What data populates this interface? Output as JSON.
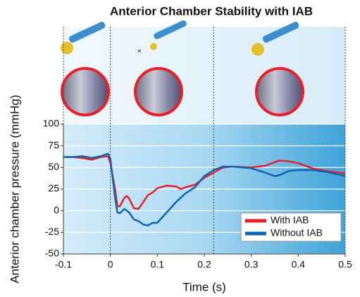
{
  "chart_data": {
    "type": "line",
    "title": "Anterior Chamber Stability with IAB",
    "x_label": "Time (s)",
    "y_label": "Anterior chamber pressure (mmHg)",
    "x": [
      -0.1,
      -0.08,
      -0.06,
      -0.04,
      -0.02,
      -0.005,
      0.0,
      0.01,
      0.015,
      0.02,
      0.03,
      0.035,
      0.04,
      0.05,
      0.06,
      0.07,
      0.08,
      0.09,
      0.1,
      0.12,
      0.14,
      0.15,
      0.16,
      0.18,
      0.2,
      0.22,
      0.24,
      0.26,
      0.3,
      0.33,
      0.35,
      0.36,
      0.38,
      0.4,
      0.43,
      0.46,
      0.5
    ],
    "series": [
      {
        "name": "With IAB",
        "color": "#e8202a",
        "values": [
          62,
          62,
          61,
          59,
          62,
          63,
          55,
          25,
          5,
          5,
          15,
          17,
          14,
          3,
          2,
          10,
          18,
          21,
          26,
          29,
          28,
          25,
          27,
          30,
          38,
          44,
          50,
          51,
          50,
          52,
          56,
          58,
          57,
          55,
          49,
          46,
          43
        ]
      },
      {
        "name": "Without IAB",
        "color": "#0f63b4",
        "values": [
          62,
          62,
          63,
          61,
          63,
          66,
          60,
          15,
          -2,
          -3,
          2,
          0,
          -2,
          -10,
          -12,
          -16,
          -17,
          -14,
          -14,
          -2,
          10,
          15,
          20,
          27,
          40,
          47,
          51,
          51,
          49,
          44,
          40,
          41,
          46,
          47,
          47,
          45,
          40
        ]
      }
    ],
    "xlim": [
      -0.1,
      0.5
    ],
    "xticks": [
      -0.1,
      0.0,
      0.1,
      0.2,
      0.3,
      0.4,
      0.5
    ],
    "ylim": [
      -50,
      100
    ],
    "yticks": [
      -50,
      -25,
      0,
      25,
      50,
      75,
      100
    ],
    "vlines": [
      -0.1,
      0.0,
      0.22,
      0.5
    ],
    "grid": true,
    "legend": "lower right"
  }
}
